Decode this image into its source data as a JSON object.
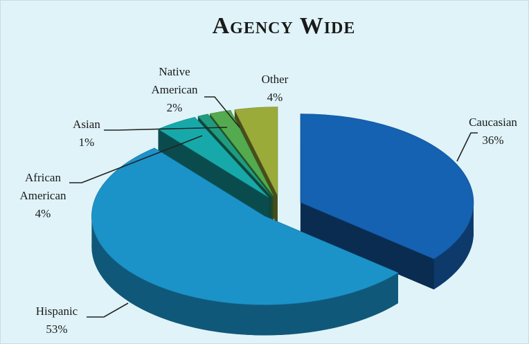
{
  "chart_data": {
    "type": "pie3d",
    "title": "Agency Wide",
    "categories": [
      "Caucasian",
      "Hispanic",
      "African American",
      "Asian",
      "Native American",
      "Other"
    ],
    "values": [
      36,
      53,
      4,
      1,
      2,
      4
    ],
    "value_labels": [
      "36%",
      "53%",
      "4%",
      "1%",
      "2%",
      "4%"
    ],
    "colors": [
      "#1561b2",
      "#1b93c9",
      "#17a9aa",
      "#1f9c80",
      "#54aa4e",
      "#9bab3a"
    ]
  }
}
